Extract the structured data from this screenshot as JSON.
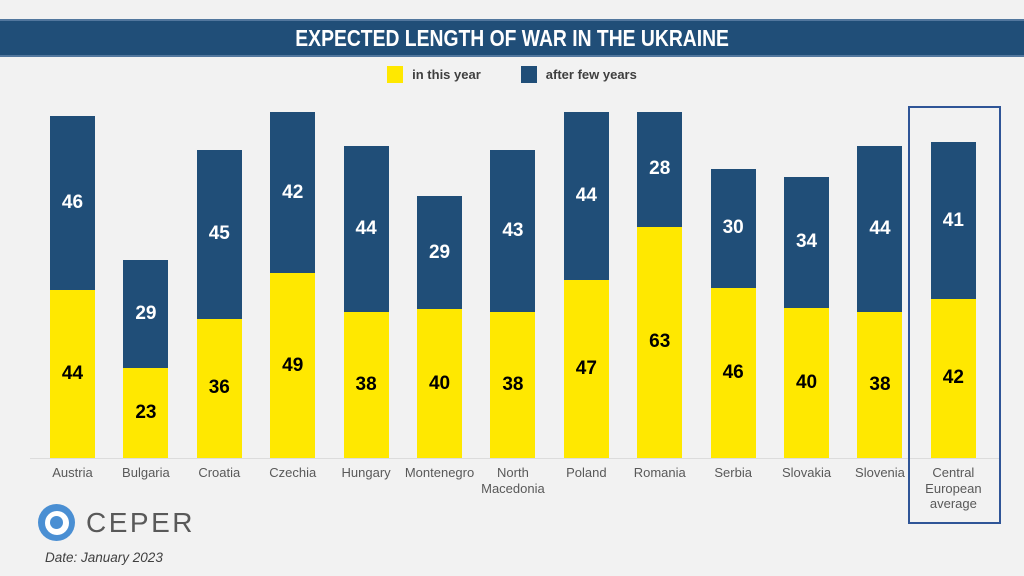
{
  "title_bar": {
    "title": "EXPECTED LENGTH OF WAR IN THE UKRAINE",
    "background_color": "#204e78",
    "border_color": "#52779e"
  },
  "chart_data": {
    "type": "bar",
    "stacked": true,
    "title": "EXPECTED LENGTH OF WAR IN THE UKRAINE",
    "categories": [
      "Austria",
      "Bulgaria",
      "Croatia",
      "Czechia",
      "Hungary",
      "Montenegro",
      "North Macedonia",
      "Poland",
      "Romania",
      "Serbia",
      "Slovakia",
      "Slovenia",
      "Central European average"
    ],
    "series": [
      {
        "name": "in this year",
        "color": "#ffe800",
        "label_color": "#000000",
        "values": [
          44,
          23,
          36,
          49,
          38,
          40,
          38,
          47,
          63,
          46,
          40,
          38,
          42
        ]
      },
      {
        "name": "after few years",
        "color": "#204e78",
        "label_color": "#ffffff",
        "values": [
          46,
          29,
          45,
          42,
          44,
          29,
          43,
          44,
          28,
          30,
          34,
          44,
          41
        ]
      }
    ],
    "value_labels": "inside-center",
    "legend_position": "top-center",
    "axes": "hidden",
    "grid": false,
    "max_total": 91,
    "highlight_category": "Central European average",
    "highlight_border_color": "#2f5597"
  },
  "footer": {
    "logo_text": "CEPER",
    "logo_color": "#4a8fd3",
    "date_label": "Date: January 2023"
  }
}
